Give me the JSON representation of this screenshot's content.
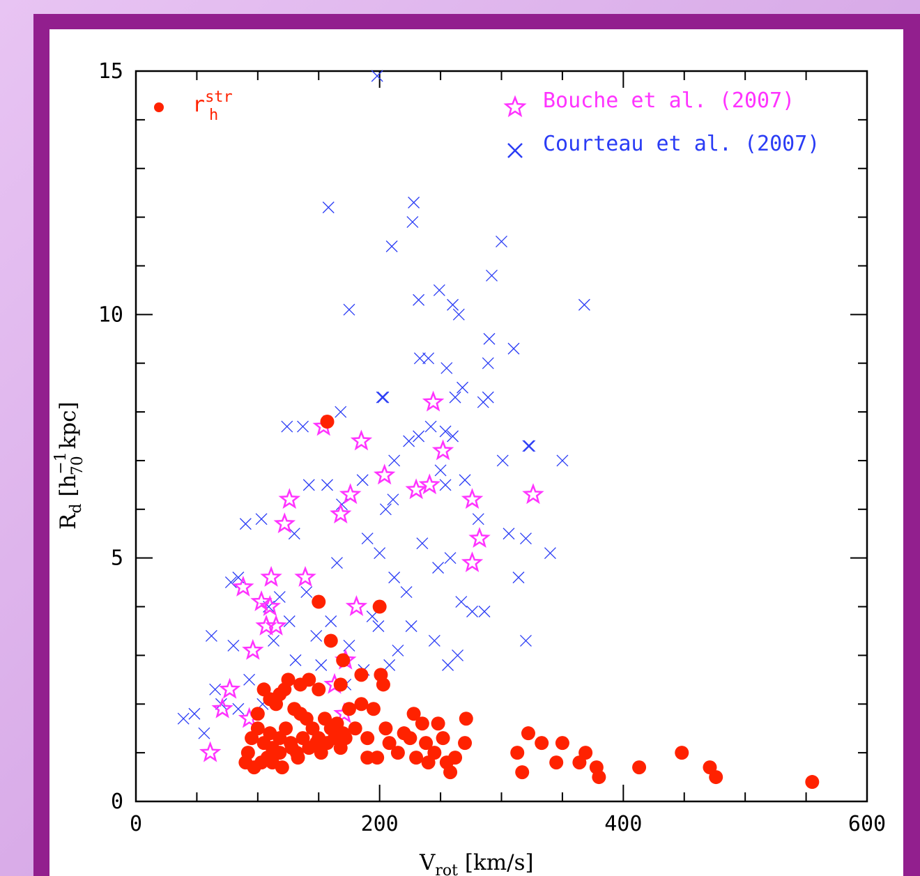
{
  "chart_data": {
    "type": "scatter",
    "x_range": [
      0,
      600
    ],
    "y_range": [
      0,
      15
    ],
    "x_ticks": [
      0,
      200,
      400,
      600
    ],
    "y_ticks": [
      0,
      5,
      10,
      15
    ],
    "xlabel": {
      "main": "V",
      "sub": "rot",
      "rest": " [km/s]"
    },
    "ylabel": {
      "main": "R",
      "sub": "d",
      "rest1": " [h",
      "sup": "−1",
      "sub2": "70",
      "rest2": " kpc]"
    },
    "legend_position": "top-right",
    "series": [
      {
        "name": "Courteau et al. (2007)",
        "marker": "x",
        "color": "#2a3cf5",
        "points": [
          [
            158,
            12.2
          ],
          [
            228,
            12.3
          ],
          [
            227,
            11.9
          ],
          [
            210,
            11.4
          ],
          [
            300,
            11.5
          ],
          [
            292,
            10.8
          ],
          [
            249,
            10.5
          ],
          [
            232,
            10.3
          ],
          [
            175,
            10.1
          ],
          [
            265,
            10.0
          ],
          [
            260,
            10.2
          ],
          [
            368,
            10.2
          ],
          [
            290,
            9.5
          ],
          [
            310,
            9.3
          ],
          [
            233,
            9.1
          ],
          [
            240,
            9.1
          ],
          [
            289,
            9.0
          ],
          [
            255,
            8.9
          ],
          [
            203,
            8.3
          ],
          [
            202,
            8.3
          ],
          [
            262,
            8.3
          ],
          [
            268,
            8.5
          ],
          [
            285,
            8.2
          ],
          [
            289,
            8.3
          ],
          [
            168,
            8.0
          ],
          [
            260,
            7.5
          ],
          [
            254,
            7.6
          ],
          [
            242,
            7.7
          ],
          [
            232,
            7.5
          ],
          [
            137,
            7.7
          ],
          [
            124,
            7.7
          ],
          [
            322,
            7.3
          ],
          [
            323,
            7.3
          ],
          [
            224,
            7.4
          ],
          [
            350,
            7.0
          ],
          [
            301,
            7.0
          ],
          [
            212,
            7.0
          ],
          [
            250,
            6.8
          ],
          [
            270,
            6.6
          ],
          [
            254,
            6.5
          ],
          [
            142,
            6.5
          ],
          [
            157,
            6.5
          ],
          [
            186,
            6.6
          ],
          [
            211,
            6.2
          ],
          [
            205,
            6.0
          ],
          [
            169,
            6.1
          ],
          [
            103,
            5.8
          ],
          [
            90,
            5.7
          ],
          [
            130,
            5.5
          ],
          [
            281,
            5.8
          ],
          [
            306,
            5.5
          ],
          [
            320,
            5.4
          ],
          [
            340,
            5.1
          ],
          [
            314,
            4.6
          ],
          [
            320,
            3.3
          ],
          [
            84,
            4.6
          ],
          [
            78,
            4.5
          ],
          [
            80,
            3.2
          ],
          [
            62,
            3.4
          ],
          [
            48,
            1.8
          ],
          [
            39,
            1.7
          ],
          [
            56,
            1.4
          ],
          [
            70,
            2.0
          ],
          [
            84,
            1.9
          ],
          [
            65,
            2.3
          ],
          [
            276,
            3.9
          ],
          [
            286,
            3.9
          ],
          [
            264,
            3.0
          ],
          [
            256,
            2.8
          ],
          [
            109,
            4.0
          ],
          [
            118,
            4.2
          ],
          [
            199,
            3.6
          ],
          [
            222,
            4.3
          ],
          [
            165,
            4.9
          ],
          [
            140,
            4.3
          ],
          [
            160,
            3.7
          ],
          [
            187,
            2.7
          ],
          [
            208,
            2.8
          ],
          [
            212,
            4.6
          ],
          [
            190,
            5.4
          ],
          [
            235,
            5.3
          ],
          [
            248,
            4.8
          ],
          [
            215,
            3.1
          ],
          [
            175,
            3.2
          ],
          [
            148,
            3.4
          ],
          [
            152,
            2.8
          ],
          [
            172,
            2.4
          ],
          [
            200,
            5.1
          ],
          [
            258,
            5.0
          ],
          [
            267,
            4.1
          ],
          [
            126,
            3.7
          ],
          [
            131,
            2.9
          ],
          [
            93,
            2.5
          ],
          [
            104,
            2.0
          ],
          [
            113,
            3.3
          ],
          [
            194,
            3.8
          ],
          [
            226,
            3.6
          ],
          [
            245,
            3.3
          ],
          [
            198,
            14.9
          ]
        ]
      },
      {
        "name": "Bouche et al. (2007)",
        "marker": "star",
        "color": "#ff33ff",
        "points": [
          [
            244,
            8.2
          ],
          [
            154,
            7.7
          ],
          [
            185,
            7.4
          ],
          [
            252,
            7.2
          ],
          [
            204,
            6.7
          ],
          [
            230,
            6.4
          ],
          [
            241,
            6.5
          ],
          [
            126,
            6.2
          ],
          [
            176,
            6.3
          ],
          [
            276,
            6.2
          ],
          [
            326,
            6.3
          ],
          [
            122,
            5.7
          ],
          [
            168,
            5.9
          ],
          [
            282,
            5.4
          ],
          [
            276,
            4.9
          ],
          [
            139,
            4.6
          ],
          [
            111,
            4.6
          ],
          [
            88,
            4.4
          ],
          [
            103,
            4.1
          ],
          [
            110,
            4.0
          ],
          [
            181,
            4.0
          ],
          [
            107,
            3.6
          ],
          [
            115,
            3.6
          ],
          [
            96,
            3.1
          ],
          [
            172,
            2.9
          ],
          [
            163,
            2.4
          ],
          [
            77,
            2.3
          ],
          [
            71,
            1.9
          ],
          [
            93,
            1.7
          ],
          [
            171,
            1.8
          ],
          [
            61,
            1.0
          ]
        ]
      },
      {
        "name": "r_h^str",
        "marker": "dot",
        "color": "#ff2200",
        "points": [
          [
            157,
            7.8
          ],
          [
            150,
            4.1
          ],
          [
            200,
            4.0
          ],
          [
            160,
            3.3
          ],
          [
            168,
            2.4
          ],
          [
            170,
            2.9
          ],
          [
            185,
            2.6
          ],
          [
            201,
            2.6
          ],
          [
            203,
            2.4
          ],
          [
            122,
            2.3
          ],
          [
            150,
            2.3
          ],
          [
            125,
            2.5
          ],
          [
            135,
            2.4
          ],
          [
            142,
            2.5
          ],
          [
            105,
            2.3
          ],
          [
            110,
            2.1
          ],
          [
            115,
            2.0
          ],
          [
            118,
            2.2
          ],
          [
            130,
            1.9
          ],
          [
            135,
            1.8
          ],
          [
            140,
            1.7
          ],
          [
            145,
            1.5
          ],
          [
            150,
            1.3
          ],
          [
            155,
            1.7
          ],
          [
            160,
            1.5
          ],
          [
            165,
            1.6
          ],
          [
            170,
            1.4
          ],
          [
            175,
            1.9
          ],
          [
            180,
            1.5
          ],
          [
            185,
            2.0
          ],
          [
            190,
            1.3
          ],
          [
            195,
            1.9
          ],
          [
            100,
            1.8
          ],
          [
            100,
            1.5
          ],
          [
            95,
            1.3
          ],
          [
            92,
            1.0
          ],
          [
            90,
            0.8
          ],
          [
            97,
            0.7
          ],
          [
            103,
            0.8
          ],
          [
            108,
            0.9
          ],
          [
            112,
            1.1
          ],
          [
            118,
            1.3
          ],
          [
            123,
            1.5
          ],
          [
            127,
            1.2
          ],
          [
            132,
            1.0
          ],
          [
            137,
            1.3
          ],
          [
            142,
            1.1
          ],
          [
            148,
            1.2
          ],
          [
            152,
            1.0
          ],
          [
            157,
            1.2
          ],
          [
            163,
            1.3
          ],
          [
            168,
            1.1
          ],
          [
            172,
            1.3
          ],
          [
            190,
            0.9
          ],
          [
            198,
            0.9
          ],
          [
            205,
            1.5
          ],
          [
            208,
            1.2
          ],
          [
            215,
            1.0
          ],
          [
            220,
            1.4
          ],
          [
            225,
            1.3
          ],
          [
            228,
            1.8
          ],
          [
            230,
            0.9
          ],
          [
            235,
            1.6
          ],
          [
            238,
            1.2
          ],
          [
            240,
            0.8
          ],
          [
            245,
            1.0
          ],
          [
            248,
            1.6
          ],
          [
            252,
            1.3
          ],
          [
            255,
            0.8
          ],
          [
            258,
            0.6
          ],
          [
            262,
            0.9
          ],
          [
            270,
            1.2
          ],
          [
            271,
            1.7
          ],
          [
            112,
            0.8
          ],
          [
            120,
            0.7
          ],
          [
            118,
            1.0
          ],
          [
            105,
            1.2
          ],
          [
            110,
            1.4
          ],
          [
            128,
            1.1
          ],
          [
            133,
            0.9
          ],
          [
            313,
            1.0
          ],
          [
            317,
            0.6
          ],
          [
            322,
            1.4
          ],
          [
            333,
            1.2
          ],
          [
            345,
            0.8
          ],
          [
            350,
            1.2
          ],
          [
            364,
            0.8
          ],
          [
            369,
            1.0
          ],
          [
            378,
            0.7
          ],
          [
            380,
            0.5
          ],
          [
            413,
            0.7
          ],
          [
            448,
            1.0
          ],
          [
            471,
            0.7
          ],
          [
            476,
            0.5
          ],
          [
            555,
            0.4
          ]
        ]
      }
    ]
  },
  "legend": {
    "stars_label": "Bouche et al. (2007)",
    "cross_label": "Courteau et al. (2007)",
    "dot_label_main": "r",
    "dot_label_sup": "str",
    "dot_label_sub": "h"
  }
}
